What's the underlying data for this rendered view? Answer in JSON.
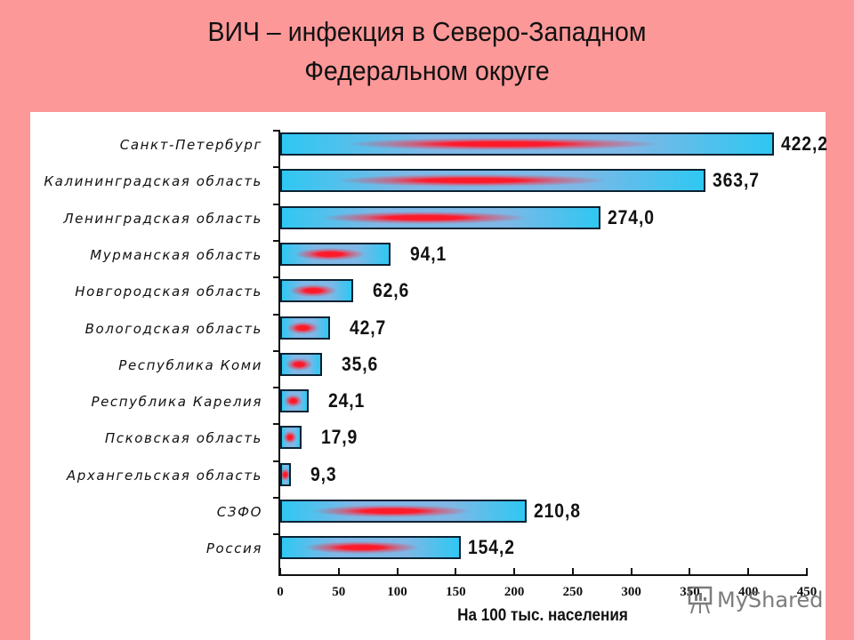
{
  "slide": {
    "title_line1": "ВИЧ – инфекция в Северо-Западном",
    "title_line2": "Федеральном округе",
    "background_color": "#fd9898"
  },
  "chart_data": {
    "type": "bar",
    "orientation": "horizontal",
    "title": "ВИЧ – инфекция в Северо-Западном Федеральном округе",
    "categories": [
      "Санкт-Петербург",
      "Калининградская область",
      "Ленинградская область",
      "Мурманская область",
      "Новгородская область",
      "Вологодская область",
      "Республика Коми",
      "Республика Карелия",
      "Псковская область",
      "Архангельская область",
      "СЗФО",
      "Россия"
    ],
    "values": [
      422.2,
      363.7,
      274.0,
      94.1,
      62.6,
      42.7,
      35.6,
      24.1,
      17.9,
      9.3,
      210.8,
      154.2
    ],
    "value_labels": [
      "422,2",
      "363,7",
      "274,0",
      "94,1",
      "62,6",
      "42,7",
      "35,6",
      "24,1",
      "17,9",
      "9,3",
      "210,8",
      "154,2"
    ],
    "xlabel": "На 100 тыс. населения",
    "ylabel": "",
    "xlim": [
      0,
      450
    ],
    "xticks": [
      "0",
      "50",
      "100",
      "150",
      "200",
      "250",
      "300",
      "350",
      "400",
      "450"
    ],
    "grid": false,
    "legend": null,
    "bar_colors": {
      "base": "#2ec8f2",
      "highlight": "#ff1a2a",
      "border": "#0a2233"
    }
  },
  "watermark": {
    "text": "MyShared"
  }
}
